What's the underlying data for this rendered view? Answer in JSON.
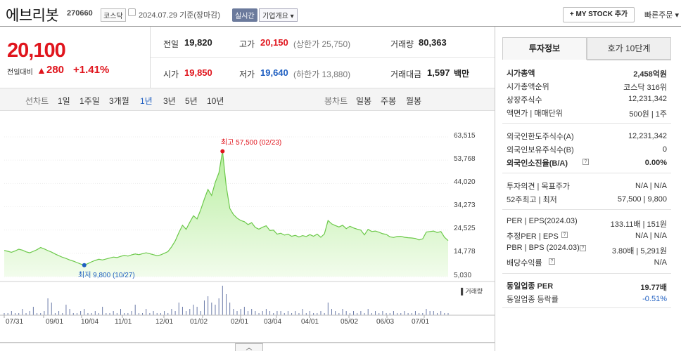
{
  "header": {
    "title": "에브리봇",
    "code": "270660",
    "market": "코스닥",
    "date": "2024.07.29 기준(장마감)",
    "realtime": "실시간",
    "company_overview": "기업개요 ▾",
    "mystock": "+ MY STOCK 추가",
    "quick_order": "빠른주문 ▾"
  },
  "price": {
    "current": "20,100",
    "compare_label": "전일대비",
    "arrow": "▲",
    "change": "280",
    "rate": "+1.41%"
  },
  "quote": {
    "prev_label": "전일",
    "prev": "19,820",
    "high_label": "고가",
    "high": "20,150",
    "upper_limit": "(상한가 25,750)",
    "volume_label": "거래량",
    "volume": "80,363",
    "open_label": "시가",
    "open": "19,850",
    "low_label": "저가",
    "low": "19,640",
    "lower_limit": "(하한가 13,880)",
    "amount_label": "거래대금",
    "amount": "1,597",
    "amount_unit": "백만"
  },
  "periods": {
    "line_label": "선차트",
    "line": [
      "1일",
      "1주일",
      "3개월",
      "1년",
      "3년",
      "5년",
      "10년"
    ],
    "selected": "1년",
    "candle_label": "봉차트",
    "candle": [
      "일봉",
      "주봉",
      "월봉"
    ]
  },
  "right": {
    "tab_invest": "투자정보",
    "tab_order": "호가 10단계",
    "rows1": [
      {
        "label": "시가총액",
        "value": "2,458억원",
        "bold": true
      },
      {
        "label": "시가총액순위",
        "value": "코스닥 316위"
      },
      {
        "label": "상장주식수",
        "value": "12,231,342"
      },
      {
        "label": "액면가 | 매매단위",
        "value": "500원 | 1주"
      }
    ],
    "rows2": [
      {
        "label": "외국인한도주식수(A)",
        "value": "12,231,342"
      },
      {
        "label": "외국인보유주식수(B)",
        "value": "0"
      },
      {
        "label": "외국인소진율(B/A)",
        "value": "0.00%",
        "bold": true
      }
    ],
    "rows3": [
      {
        "label": "투자의견 | 목표주가",
        "value": "N/A | N/A"
      },
      {
        "label": "52주최고 | 최저",
        "value": "57,500 | 9,800"
      }
    ],
    "rows4": [
      {
        "label": "PER | EPS(2024.03)",
        "value": "133.11배 | 151원"
      },
      {
        "label": "추정PER | EPS",
        "value": "N/A | N/A"
      },
      {
        "label": "PBR | BPS (2024.03)",
        "value": "3.80배 | 5,291원"
      },
      {
        "label": "배당수익률",
        "value": "N/A"
      }
    ],
    "rows5": [
      {
        "label": "동일업종 PER",
        "value": "19.77배",
        "bold": true
      },
      {
        "label": "동일업종 등락률",
        "value": "-0.51%",
        "blue": true
      }
    ]
  },
  "chart_data": {
    "type": "area",
    "y_ticks": [
      "63,515",
      "53,768",
      "44,020",
      "34,273",
      "24,525",
      "14,778",
      "5,030"
    ],
    "ylim": [
      5030,
      63515
    ],
    "x_ticks": [
      "07/31",
      "09/01",
      "10/04",
      "11/01",
      "12/01",
      "01/02",
      "02/01",
      "03/04",
      "04/01",
      "05/02",
      "06/03",
      "07/01"
    ],
    "high_label": "최고 57,500 (02/23)",
    "low_label": "최저 9,800 (10/27)",
    "volume_label": "▌거래량",
    "series": [
      {
        "values": [
          16000,
          15600,
          15200,
          15800,
          16500,
          16100,
          15400,
          15000,
          15600,
          16300,
          17200,
          16600,
          15900,
          15300,
          14500,
          13800,
          13100,
          12600,
          12000,
          11500,
          10900,
          10300,
          9800,
          10500,
          11200,
          11800,
          12300,
          12000,
          12400,
          12800,
          13200,
          13000,
          13500,
          13900,
          13600,
          14100,
          14500,
          14200,
          14600,
          15000,
          14600,
          14200,
          13800,
          14100,
          14800,
          15500,
          17500,
          20000,
          23500,
          26500,
          24800,
          27800,
          30500,
          29200,
          33000,
          37500,
          41500,
          39000,
          44500,
          48500,
          57500,
          43000,
          33500,
          31000,
          29500,
          28500,
          28000,
          26800,
          27600,
          25600,
          24900,
          25700,
          26300,
          24300,
          24500,
          22800,
          23200,
          22400,
          22800,
          21900,
          22300,
          21600,
          22200,
          21800,
          22600,
          21900,
          22800,
          21500,
          22900,
          28500,
          27100,
          26400,
          25800,
          26500,
          25100,
          26100,
          25400,
          24900,
          24500,
          22500,
          24800,
          23900,
          24100,
          23600,
          23000,
          22700,
          21700,
          21400,
          21800,
          21900,
          21500,
          21300,
          21200,
          21000,
          20400,
          20800,
          23700,
          23900,
          24100,
          23500,
          23900,
          21500,
          20100
        ]
      }
    ],
    "volume": [
      1,
      1,
      2,
      1,
      1,
      3,
      1,
      2,
      4,
      1,
      1,
      2,
      8,
      6,
      1,
      2,
      1,
      5,
      3,
      1,
      1,
      2,
      3,
      1,
      1,
      2,
      1,
      4,
      1,
      1,
      2,
      1,
      3,
      1,
      1,
      2,
      5,
      1,
      1,
      3,
      1,
      2,
      1,
      1,
      2,
      1,
      3,
      2,
      6,
      4,
      2,
      3,
      5,
      4,
      2,
      7,
      9,
      6,
      5,
      8,
      14,
      10,
      6,
      3,
      2,
      3,
      4,
      2,
      3,
      2,
      1,
      2,
      3,
      2,
      1,
      2,
      2,
      1,
      2,
      1,
      2,
      1,
      3,
      1,
      2,
      1,
      1,
      2,
      1,
      6,
      3,
      2,
      1,
      3,
      2,
      1,
      2,
      1,
      2,
      1,
      3,
      1,
      2,
      1,
      2,
      1,
      1,
      2,
      1,
      1,
      2,
      1,
      1,
      2,
      1,
      1,
      3,
      2,
      2,
      1,
      2,
      1,
      1
    ]
  }
}
